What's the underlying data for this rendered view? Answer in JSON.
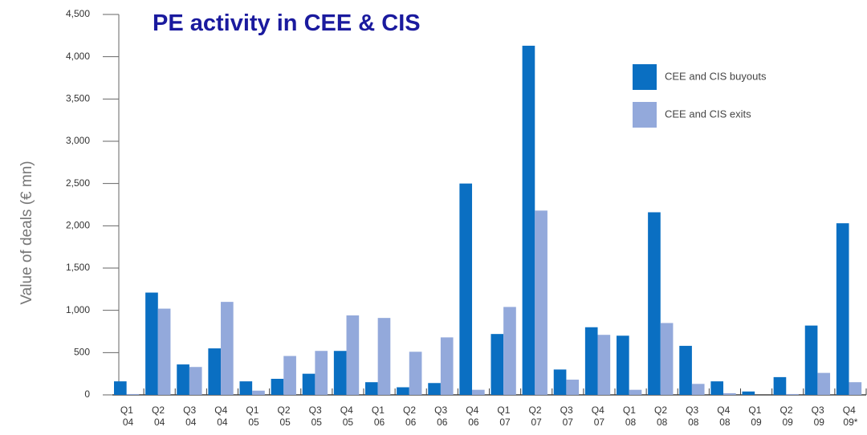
{
  "chart_data": {
    "type": "bar",
    "title": "PE activity in CEE & CIS",
    "y_label": "Value of deals (€ mn)",
    "categories": [
      "Q1 04",
      "Q2 04",
      "Q3 04",
      "Q4 04",
      "Q1 05",
      "Q2 05",
      "Q3 05",
      "Q4 05",
      "Q1 06",
      "Q2 06",
      "Q3 06",
      "Q4 06",
      "Q1 07",
      "Q2 07",
      "Q3 07",
      "Q4 07",
      "Q1 08",
      "Q2 08",
      "Q3 08",
      "Q4 08",
      "Q1 09",
      "Q2 09",
      "Q3 09",
      "Q4 09*"
    ],
    "series": [
      {
        "name": "CEE and CIS buyouts",
        "color": "#0a6fc2",
        "values": [
          160,
          1210,
          360,
          550,
          160,
          190,
          250,
          520,
          150,
          90,
          140,
          2500,
          720,
          4130,
          300,
          800,
          700,
          2160,
          580,
          160,
          40,
          210,
          820,
          2030
        ]
      },
      {
        "name": "CEE and CIS exits",
        "color": "#93a9db",
        "values": [
          10,
          1020,
          330,
          1100,
          50,
          460,
          520,
          940,
          910,
          510,
          680,
          60,
          1040,
          2180,
          180,
          710,
          60,
          850,
          130,
          20,
          0,
          10,
          260,
          150
        ]
      }
    ],
    "ylim": [
      0,
      4500
    ],
    "yticks": [
      0,
      500,
      {
        "value": 1000,
        "label": "1,000"
      },
      {
        "value": 1500,
        "label": "1,500"
      },
      {
        "value": 2000,
        "label": "2,000"
      },
      {
        "value": 2500,
        "label": "2,500"
      },
      {
        "value": 3000,
        "label": "3,000"
      },
      {
        "value": 3500,
        "label": "3,500"
      },
      {
        "value": 4000,
        "label": "4,000"
      },
      {
        "value": 4500,
        "label": "4,500"
      }
    ],
    "legend": "upper right"
  }
}
